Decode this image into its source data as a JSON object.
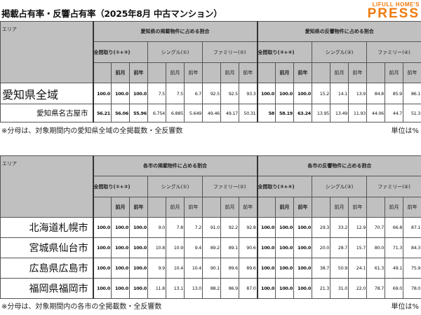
{
  "title": "掲載占有率・反響占有率（2025年8月 中古マンション）",
  "logo": {
    "line1": "LIFULL HOME'S",
    "line2": "PRESS",
    "color": "#f07a0c"
  },
  "header_bg": "#c0c0c0",
  "table1": {
    "area_label": "エリア",
    "group1": "愛知県の掲載物件に占める割合",
    "group2": "愛知県の反響物件に占める割合",
    "sub": [
      "全間取り(①+②)",
      "シングル(①)",
      "ファミリー(②)",
      "全間取り(③+④)",
      "シングル(③)",
      "ファミリー(④)"
    ],
    "prev_month": "前月",
    "prev_year": "前年",
    "rows": [
      {
        "area": "愛知県全域",
        "values": [
          "100.0",
          "100.0",
          "100.0",
          "7.5",
          "7.5",
          "6.7",
          "92.5",
          "92.5",
          "93.3",
          "100.0",
          "100.0",
          "100.0",
          "15.2",
          "14.1",
          "13.9",
          "84.8",
          "85.9",
          "86.1"
        ]
      },
      {
        "area": "愛知県名古屋市",
        "values": [
          "56.21",
          "56.06",
          "55.96",
          "6.754",
          "6.885",
          "5.649",
          "49.46",
          "49.17",
          "50.31",
          "58",
          "58.19",
          "63.24",
          "13.95",
          "13.49",
          "11.93",
          "44.06",
          "44.7",
          "51.3"
        ]
      }
    ],
    "note": "※分母は、対象期間内の愛知県全域の全掲載数・全反響数",
    "unit": "単位は%"
  },
  "table2": {
    "area_label": "エリア",
    "group1": "各市の掲載物件に占める割合",
    "group2": "各市の反響物件に占める割合",
    "sub": [
      "全間取り(①+②)",
      "シングル(①)",
      "ファミリー(②)",
      "全間取り(③+④)",
      "シングル(③)",
      "ファミリー(④)"
    ],
    "prev_month": "前月",
    "prev_year": "前年",
    "rows": [
      {
        "area": "北海道札幌市",
        "values": [
          "100.0",
          "100.0",
          "100.0",
          "9.0",
          "7.8",
          "7.2",
          "91.0",
          "92.2",
          "92.8",
          "100.0",
          "100.0",
          "100.0",
          "29.3",
          "33.2",
          "12.9",
          "70.7",
          "66.8",
          "87.1"
        ]
      },
      {
        "area": "宮城県仙台市",
        "values": [
          "100.0",
          "100.0",
          "100.0",
          "10.8",
          "10.9",
          "9.4",
          "89.2",
          "89.1",
          "90.6",
          "100.0",
          "100.0",
          "100.0",
          "20.0",
          "28.7",
          "15.7",
          "80.0",
          "71.3",
          "84.3"
        ]
      },
      {
        "area": "広島県広島市",
        "values": [
          "100.0",
          "100.0",
          "100.0",
          "9.9",
          "10.4",
          "10.4",
          "90.1",
          "89.6",
          "89.6",
          "100.0",
          "100.0",
          "100.0",
          "38.7",
          "50.9",
          "24.1",
          "61.3",
          "49.1",
          "75.9"
        ]
      },
      {
        "area": "福岡県福岡市",
        "values": [
          "100.0",
          "100.0",
          "100.0",
          "11.8",
          "13.1",
          "13.0",
          "88.2",
          "86.9",
          "87.0",
          "100.0",
          "100.0",
          "100.0",
          "21.3",
          "31.0",
          "22.0",
          "78.7",
          "69.0",
          "78.0"
        ]
      }
    ],
    "note": "※分母は、対象期間内の各市の全掲載数・全反響数",
    "unit": "単位は%"
  }
}
